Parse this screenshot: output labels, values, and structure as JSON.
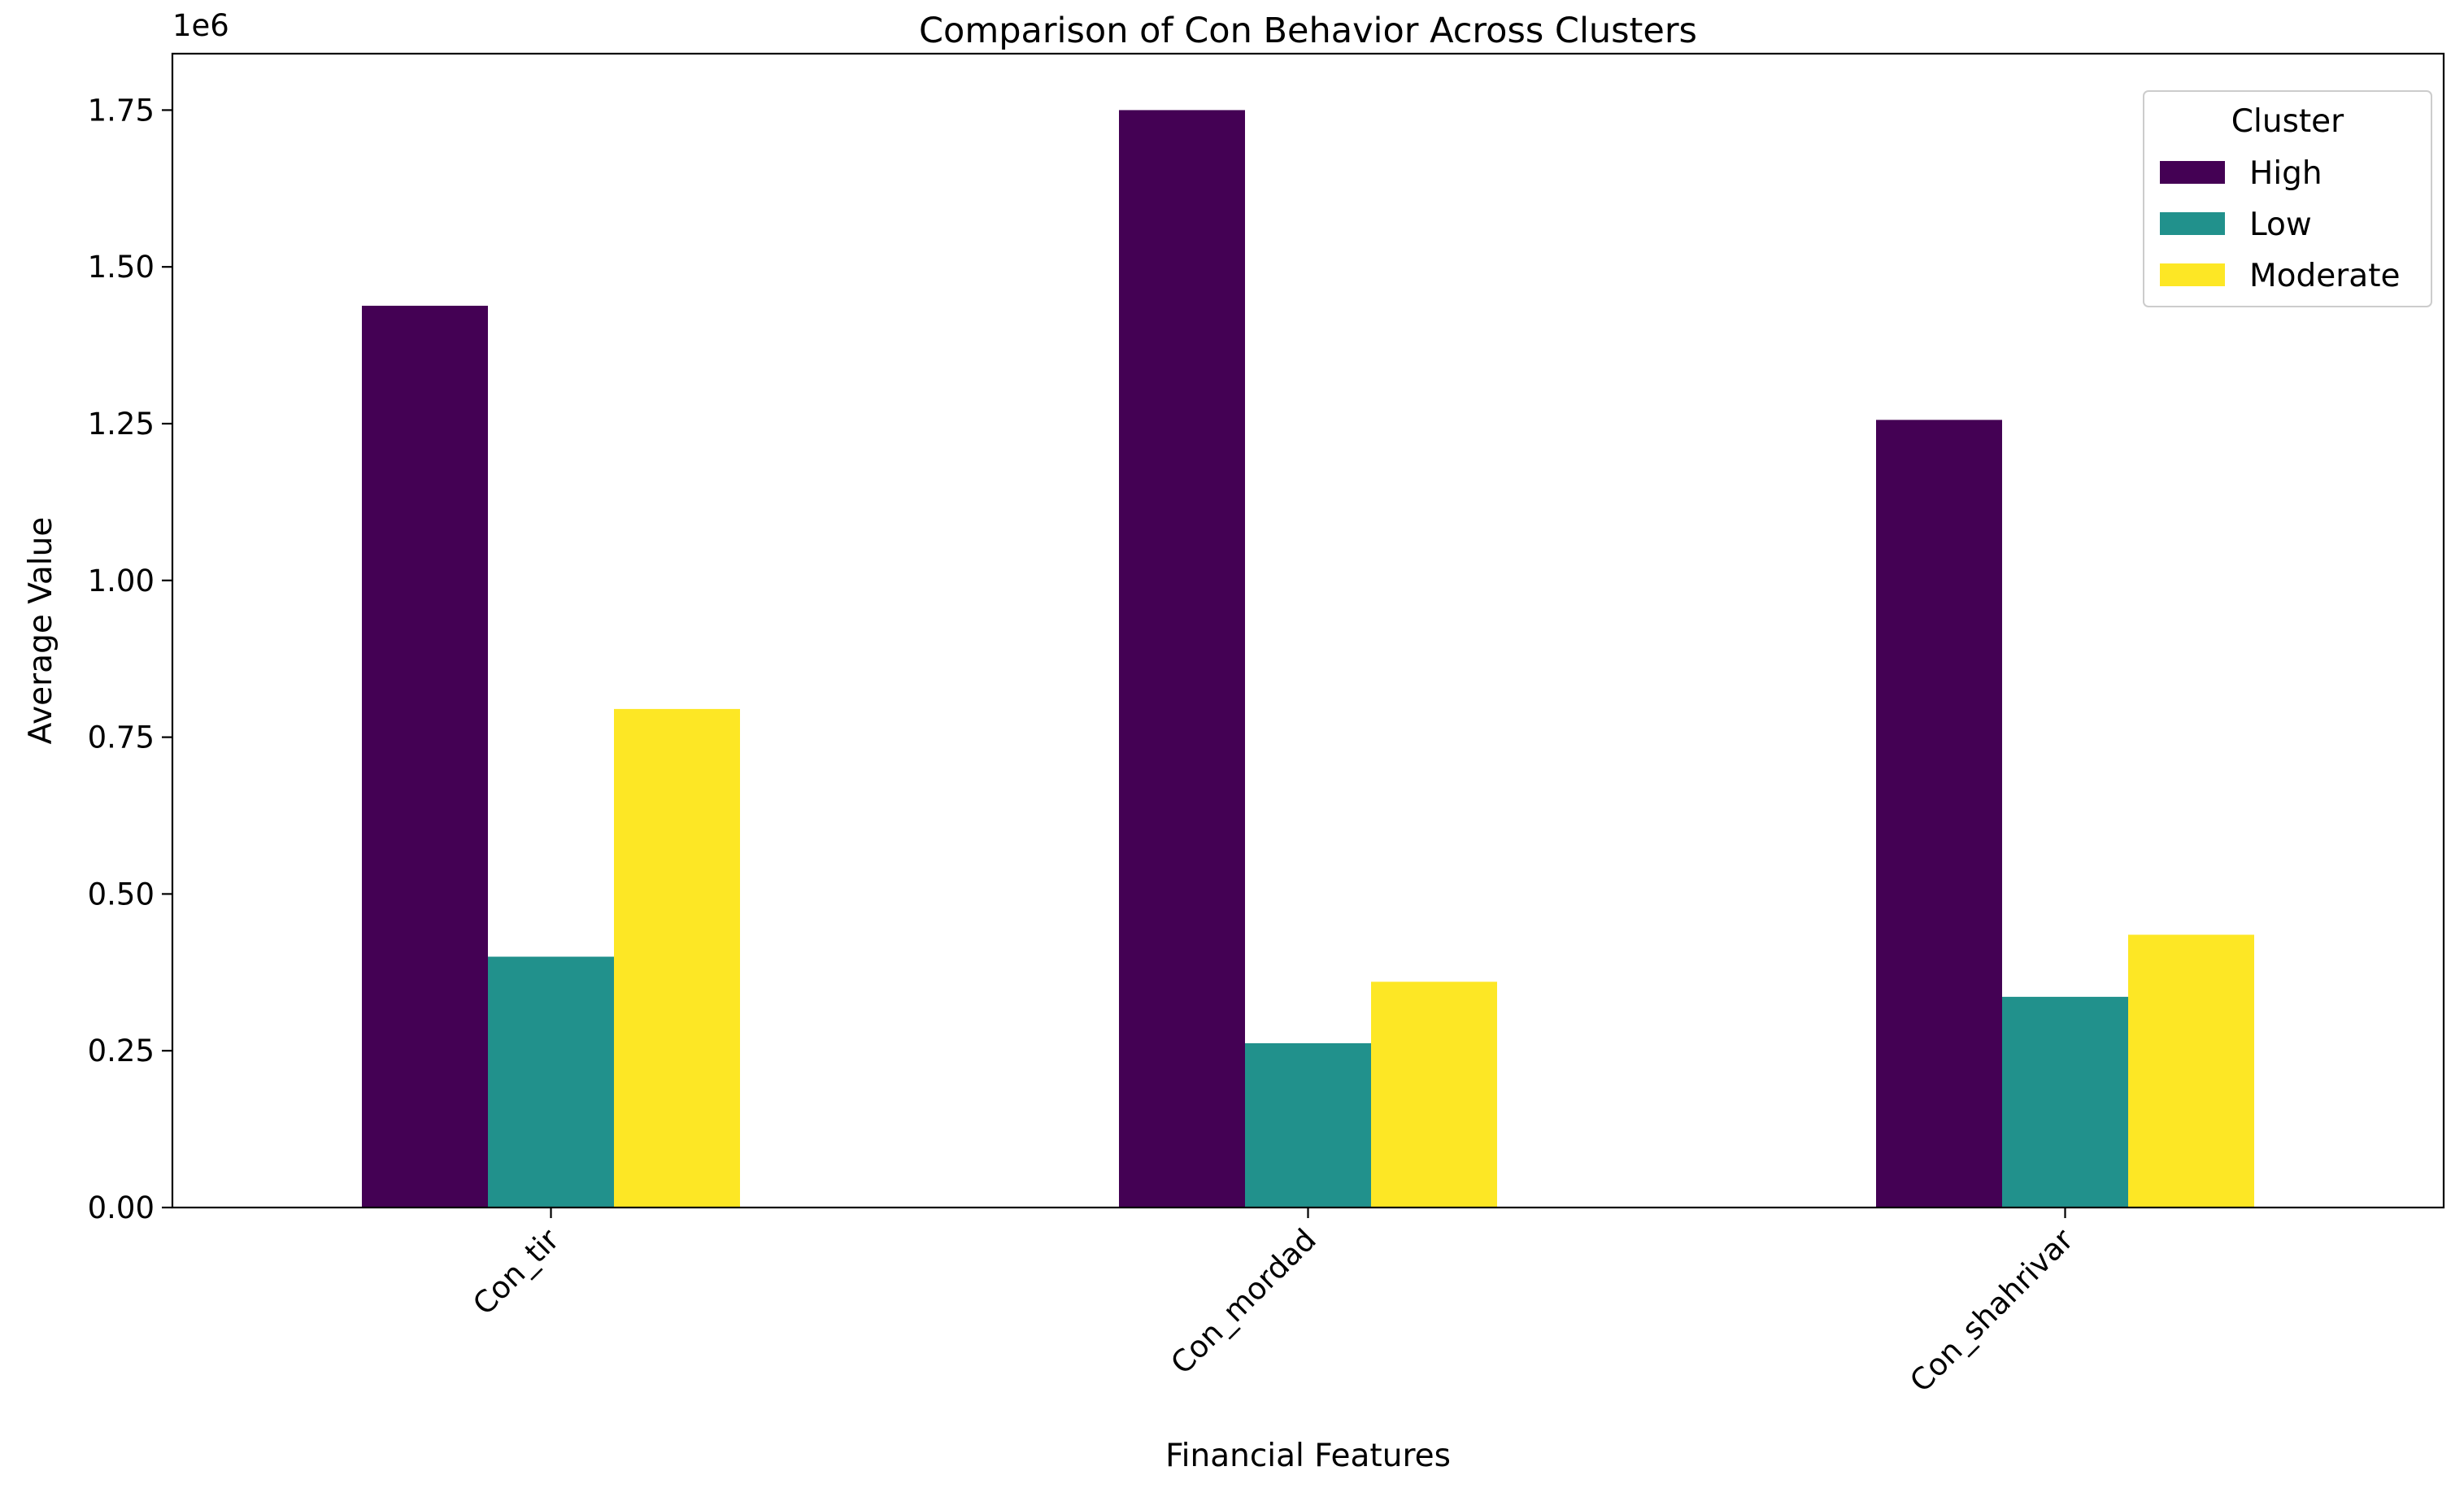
{
  "chart_data": {
    "type": "bar",
    "title": "Comparison of Con Behavior Across Clusters",
    "xlabel": "Financial Features",
    "ylabel": "Average Value",
    "offset_label": "1e6",
    "categories": [
      "Con_tir",
      "Con_mordad",
      "Con_shahrivar"
    ],
    "series": [
      {
        "name": "High",
        "color": "#440154",
        "values": [
          1438000,
          1750000,
          1256000
        ]
      },
      {
        "name": "Low",
        "color": "#21918c",
        "values": [
          400000,
          262000,
          336000
        ]
      },
      {
        "name": "Moderate",
        "color": "#fde725",
        "values": [
          795000,
          360000,
          435000
        ]
      }
    ],
    "ylim": [
      0,
      1840000
    ],
    "yticks": [
      0,
      250000,
      500000,
      750000,
      1000000,
      1250000,
      1500000,
      1750000
    ],
    "ytick_labels": [
      "0.00",
      "0.25",
      "0.50",
      "0.75",
      "1.00",
      "1.25",
      "1.50",
      "1.75"
    ],
    "legend": {
      "title": "Cluster",
      "placement": "top-right"
    },
    "grid": false
  }
}
